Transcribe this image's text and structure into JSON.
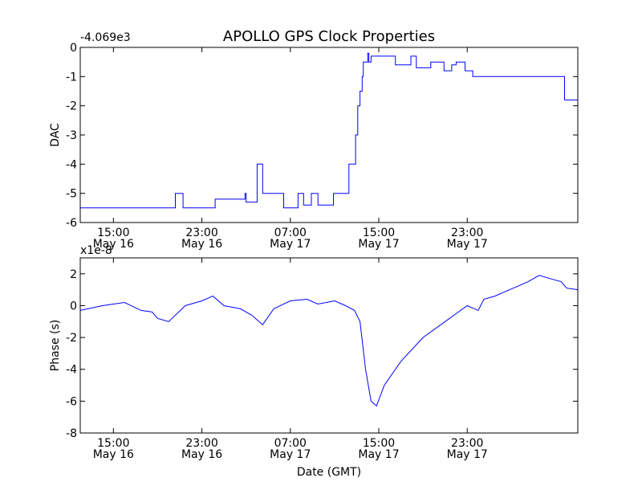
{
  "title": "APOLLO GPS Clock Properties",
  "colors": {
    "line": "#0000ff",
    "axes": "#000000",
    "background": "#ffffff"
  },
  "chart_data": [
    {
      "type": "line",
      "ylabel": "DAC",
      "offset_label": "-4.069e3",
      "ylim": [
        -6,
        0
      ],
      "yticks": [
        "0",
        "-1",
        "-2",
        "-3",
        "-4",
        "-5",
        "-6"
      ],
      "ytick_values": [
        0,
        -1,
        -2,
        -3,
        -4,
        -5,
        -6
      ],
      "xlim_hours": [
        12,
        57
      ],
      "xticks": [
        {
          "time": "15:00",
          "date": "May 16"
        },
        {
          "time": "23:00",
          "date": "May 16"
        },
        {
          "time": "07:00",
          "date": "May 17"
        },
        {
          "time": "15:00",
          "date": "May 17"
        },
        {
          "time": "23:00",
          "date": "May 17"
        }
      ],
      "xtick_hours": [
        15,
        23,
        31,
        39,
        47
      ],
      "grid": false,
      "series": [
        {
          "x": [
            12.0,
            20.6,
            21.3,
            24.2,
            26.9,
            27.0,
            28.0,
            28.5,
            29.9,
            30.4,
            31.7,
            32.2,
            32.9,
            33.5,
            34.9,
            36.3,
            36.9,
            37.1,
            37.3,
            37.5,
            37.6,
            38.0,
            38.1,
            38.3,
            40.5,
            41.9,
            42.4,
            43.7,
            44.9,
            45.6,
            46.0,
            46.8,
            47.5,
            49.0,
            52.0,
            53.5,
            55.8,
            57.0
          ],
          "y": [
            -5.5,
            -5.0,
            -5.5,
            -5.2,
            -5.0,
            -5.3,
            -4.0,
            -5.0,
            -5.0,
            -5.5,
            -5.0,
            -5.4,
            -5.0,
            -5.4,
            -5.0,
            -4.0,
            -3.0,
            -2.0,
            -1.5,
            -1.0,
            -0.5,
            -0.2,
            -0.5,
            -0.3,
            -0.6,
            -0.3,
            -0.7,
            -0.5,
            -0.8,
            -0.6,
            -0.5,
            -0.8,
            -1.0,
            -1.0,
            -1.0,
            -1.0,
            -1.8,
            -1.6
          ]
        }
      ]
    },
    {
      "type": "line",
      "xlabel": "Date (GMT)",
      "ylabel": "Phase (s)",
      "offset_label": "x1e-8",
      "ylim": [
        -8,
        3
      ],
      "yticks": [
        "2",
        "0",
        "-2",
        "-4",
        "-6",
        "-8"
      ],
      "ytick_values": [
        2,
        0,
        -2,
        -4,
        -6,
        -8
      ],
      "xlim_hours": [
        12,
        57
      ],
      "xticks": [
        {
          "time": "15:00",
          "date": "May 16"
        },
        {
          "time": "23:00",
          "date": "May 16"
        },
        {
          "time": "07:00",
          "date": "May 17"
        },
        {
          "time": "15:00",
          "date": "May 17"
        },
        {
          "time": "23:00",
          "date": "May 17"
        }
      ],
      "xtick_hours": [
        15,
        23,
        31,
        39,
        47
      ],
      "grid": false,
      "series": [
        {
          "x": [
            12.0,
            14.0,
            16.0,
            17.5,
            18.5,
            19.0,
            20.0,
            21.5,
            23.0,
            24.0,
            25.0,
            26.5,
            27.0,
            27.5,
            28.5,
            29.5,
            31.0,
            32.5,
            33.5,
            35.0,
            36.0,
            36.8,
            37.3,
            37.8,
            38.3,
            38.8,
            39.5,
            41.0,
            43.0,
            45.0,
            46.0,
            47.0,
            48.0,
            48.5,
            49.5,
            50.5,
            51.5,
            52.5,
            53.5,
            54.5,
            55.5,
            56.0,
            57.0
          ],
          "y": [
            -0.3,
            0.0,
            0.2,
            -0.3,
            -0.4,
            -0.8,
            -1.0,
            0.0,
            0.3,
            0.6,
            0.0,
            -0.2,
            -0.4,
            -0.6,
            -1.2,
            -0.2,
            0.3,
            0.4,
            0.1,
            0.3,
            0.0,
            -0.3,
            -1.0,
            -4.0,
            -6.0,
            -6.3,
            -5.0,
            -3.5,
            -2.0,
            -1.0,
            -0.5,
            0.0,
            -0.3,
            0.4,
            0.6,
            0.9,
            1.2,
            1.5,
            1.9,
            1.7,
            1.5,
            1.1,
            1.0
          ]
        }
      ]
    }
  ]
}
